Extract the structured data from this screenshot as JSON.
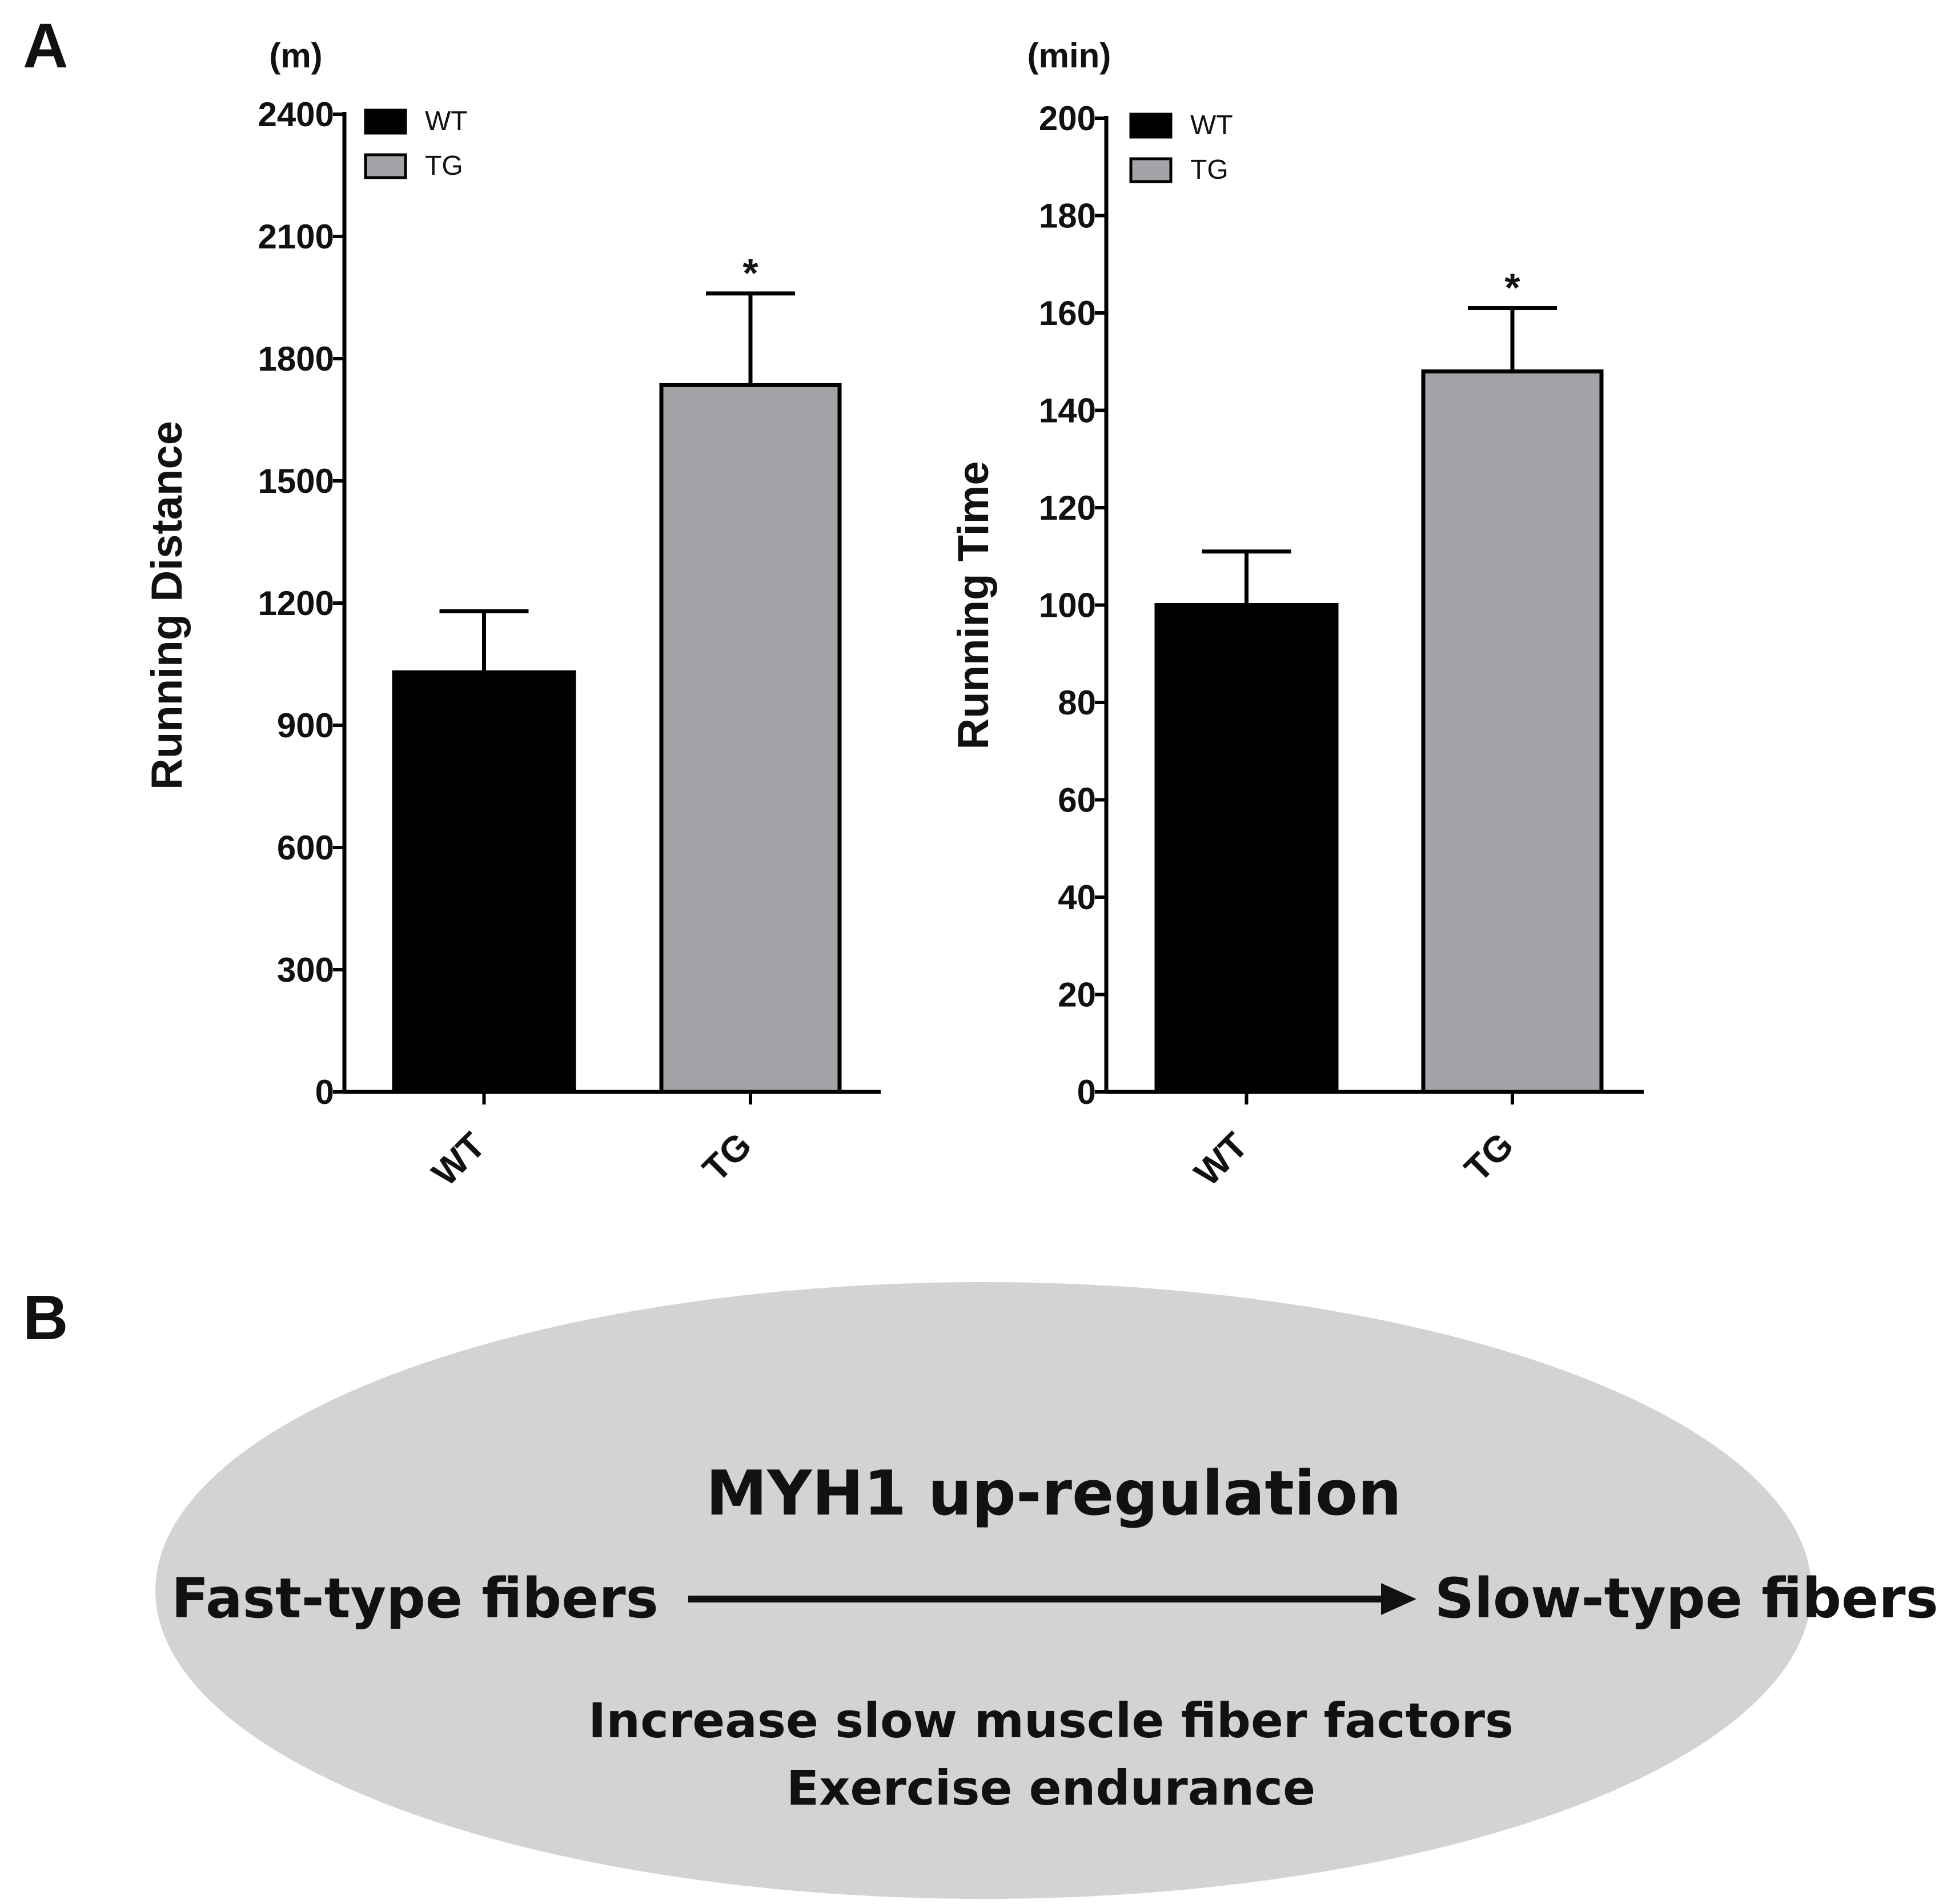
{
  "panel_a_label": "A",
  "panel_b_label": "B",
  "chart_data": [
    {
      "type": "bar",
      "title": "",
      "unit": "(m)",
      "ylabel": "Running Distance",
      "xlabel": "",
      "categories": [
        "WT",
        "TG"
      ],
      "values": [
        1030,
        1735
      ],
      "errors": [
        150,
        225
      ],
      "significance": [
        "",
        "*"
      ],
      "ylim": [
        0,
        2400
      ],
      "yticks": [
        0,
        300,
        600,
        900,
        1200,
        1500,
        1800,
        2100,
        2400
      ],
      "legend": [
        {
          "label": "WT",
          "color": "#000000"
        },
        {
          "label": "TG",
          "color": "#a3a4a8"
        }
      ],
      "legend_position": "top-left",
      "bar_colors": [
        "#000000",
        "#a3a4a8"
      ],
      "grid": false
    },
    {
      "type": "bar",
      "title": "",
      "unit": "(min)",
      "ylabel": "Running Time",
      "xlabel": "",
      "categories": [
        "WT",
        "TG"
      ],
      "values": [
        100,
        148
      ],
      "errors": [
        11,
        13
      ],
      "significance": [
        "",
        "*"
      ],
      "ylim": [
        0,
        200
      ],
      "yticks": [
        0,
        20,
        40,
        60,
        80,
        100,
        120,
        140,
        160,
        180,
        200
      ],
      "legend": [
        {
          "label": "WT",
          "color": "#000000"
        },
        {
          "label": "TG",
          "color": "#a3a4a8"
        }
      ],
      "legend_position": "top-left",
      "bar_colors": [
        "#000000",
        "#a3a4a8"
      ],
      "grid": false
    }
  ],
  "diagram": {
    "title": "MYH1 up-regulation",
    "left_label": "Fast-type fibers",
    "right_label": "Slow-type fibers",
    "effect_line1": "Increase slow muscle fiber factors",
    "effect_line2": "Exercise endurance",
    "ellipse_color": "#d3d3d3"
  }
}
